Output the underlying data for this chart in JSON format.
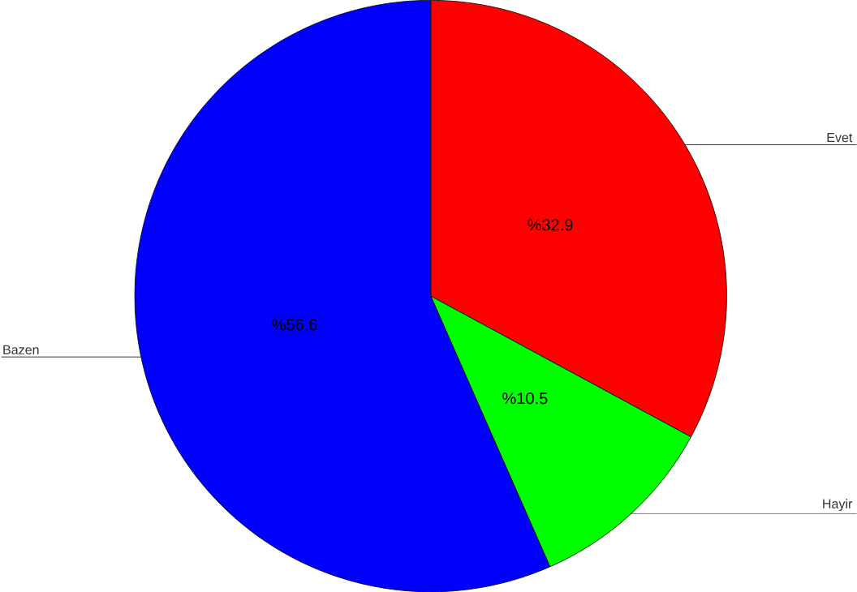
{
  "chart_data": {
    "type": "pie",
    "categories": [
      "Evet",
      "Hayir",
      "Bazen"
    ],
    "values": [
      32.9,
      10.5,
      56.6
    ],
    "colors": [
      "#ff0000",
      "#00ff00",
      "#0000ff"
    ],
    "value_labels": [
      "%32.9",
      "%10.5",
      "%56.6"
    ]
  }
}
